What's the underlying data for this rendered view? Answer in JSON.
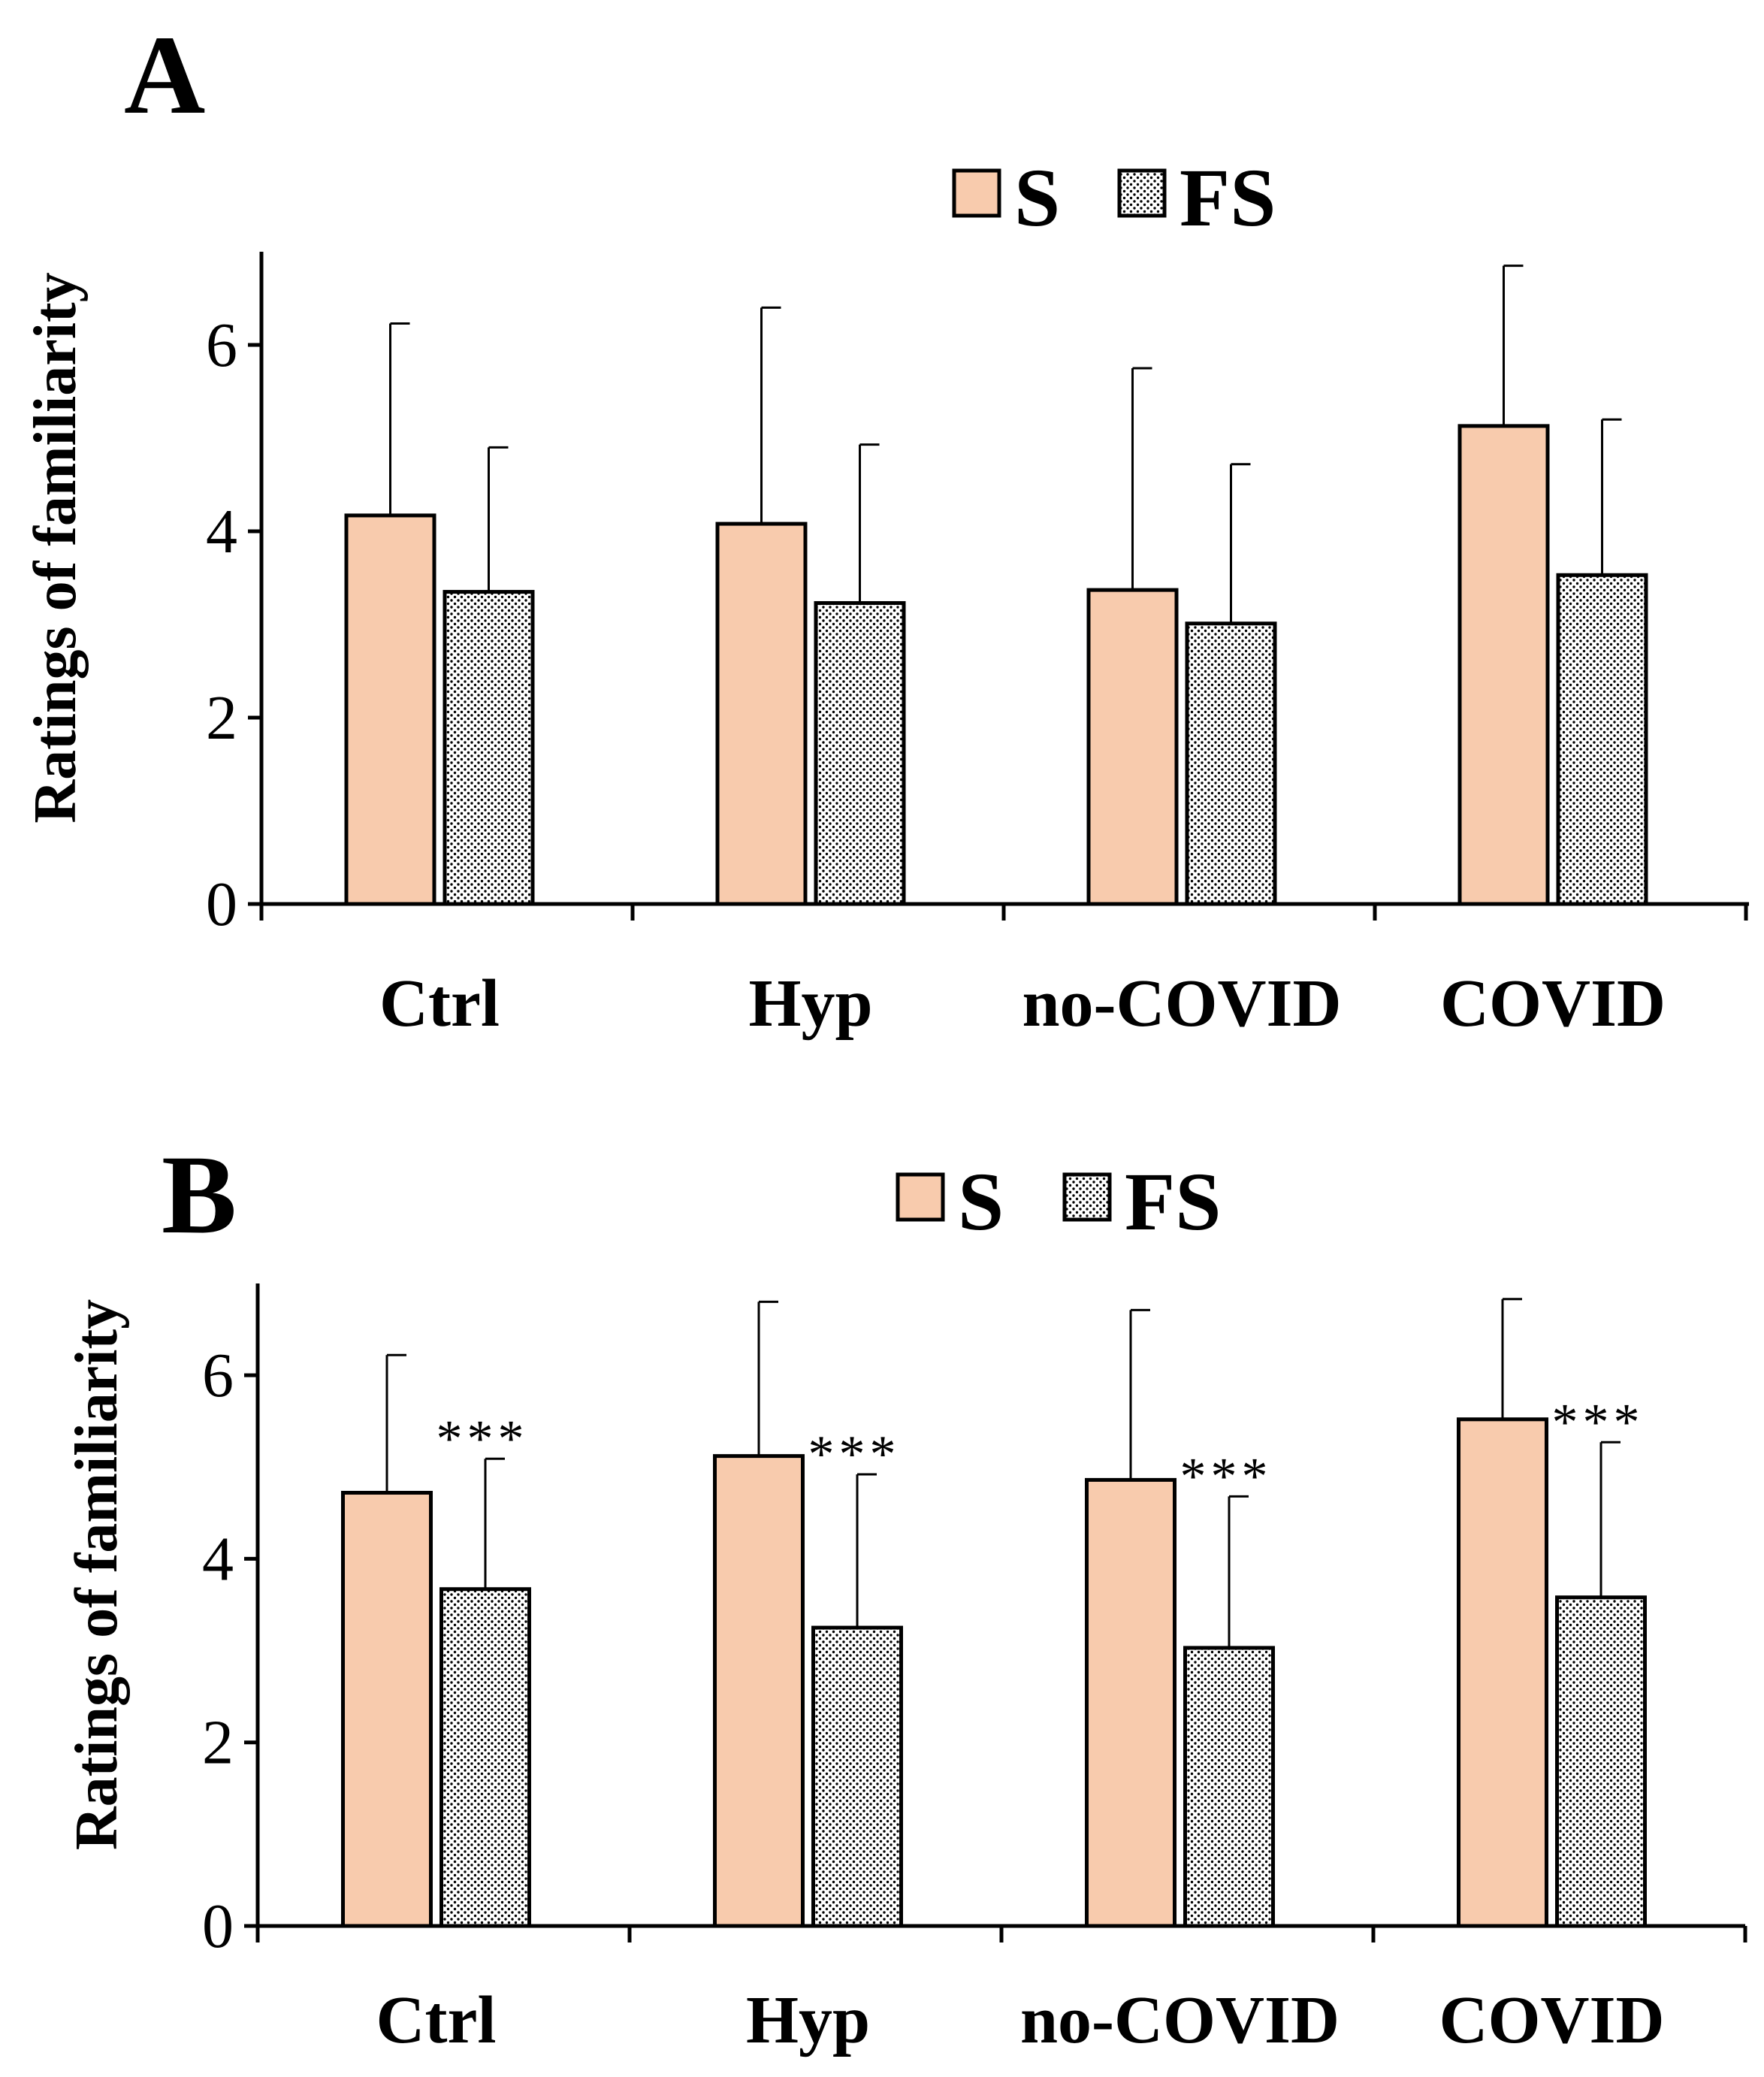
{
  "colors": {
    "s_fill": "#F8CBAD",
    "fs_fill": "#F2F2F2",
    "stroke": "#000000"
  },
  "chart_data": [
    {
      "type": "bar",
      "panel": "A",
      "title": "",
      "xlabel": "",
      "ylabel": "Ratings of familiarity",
      "ylim": [
        0,
        7
      ],
      "yticks": [
        "0",
        "2",
        "4",
        "6"
      ],
      "categories": [
        "Ctrl",
        "Hyp",
        "no-COVID",
        "COVID"
      ],
      "legend": [
        "S",
        "FS"
      ],
      "series": [
        {
          "name": "S",
          "values": [
            4.17,
            4.08,
            3.37,
            5.13
          ],
          "errors": [
            2.06,
            2.32,
            2.38,
            1.72
          ],
          "significance": [
            "",
            "",
            "",
            ""
          ]
        },
        {
          "name": "FS",
          "values": [
            3.35,
            3.23,
            3.01,
            3.53
          ],
          "errors": [
            1.55,
            1.7,
            1.71,
            1.67
          ],
          "significance": [
            "",
            "",
            "",
            ""
          ]
        }
      ]
    },
    {
      "type": "bar",
      "panel": "B",
      "title": "",
      "xlabel": "",
      "ylabel": "Ratings of familiarity",
      "ylim": [
        0,
        7
      ],
      "yticks": [
        "0",
        "2",
        "4",
        "6"
      ],
      "categories": [
        "Ctrl",
        "Hyp",
        "no-COVID",
        "COVID"
      ],
      "legend": [
        "S",
        "FS"
      ],
      "series": [
        {
          "name": "S",
          "values": [
            4.72,
            5.12,
            4.86,
            5.52
          ],
          "errors": [
            1.5,
            1.68,
            1.85,
            1.31
          ],
          "significance": [
            "",
            "",
            "",
            ""
          ]
        },
        {
          "name": "FS",
          "values": [
            3.67,
            3.25,
            3.03,
            3.58
          ],
          "errors": [
            1.42,
            1.67,
            1.65,
            1.69
          ],
          "significance": [
            "***",
            "***",
            "***",
            "***"
          ]
        }
      ]
    }
  ]
}
